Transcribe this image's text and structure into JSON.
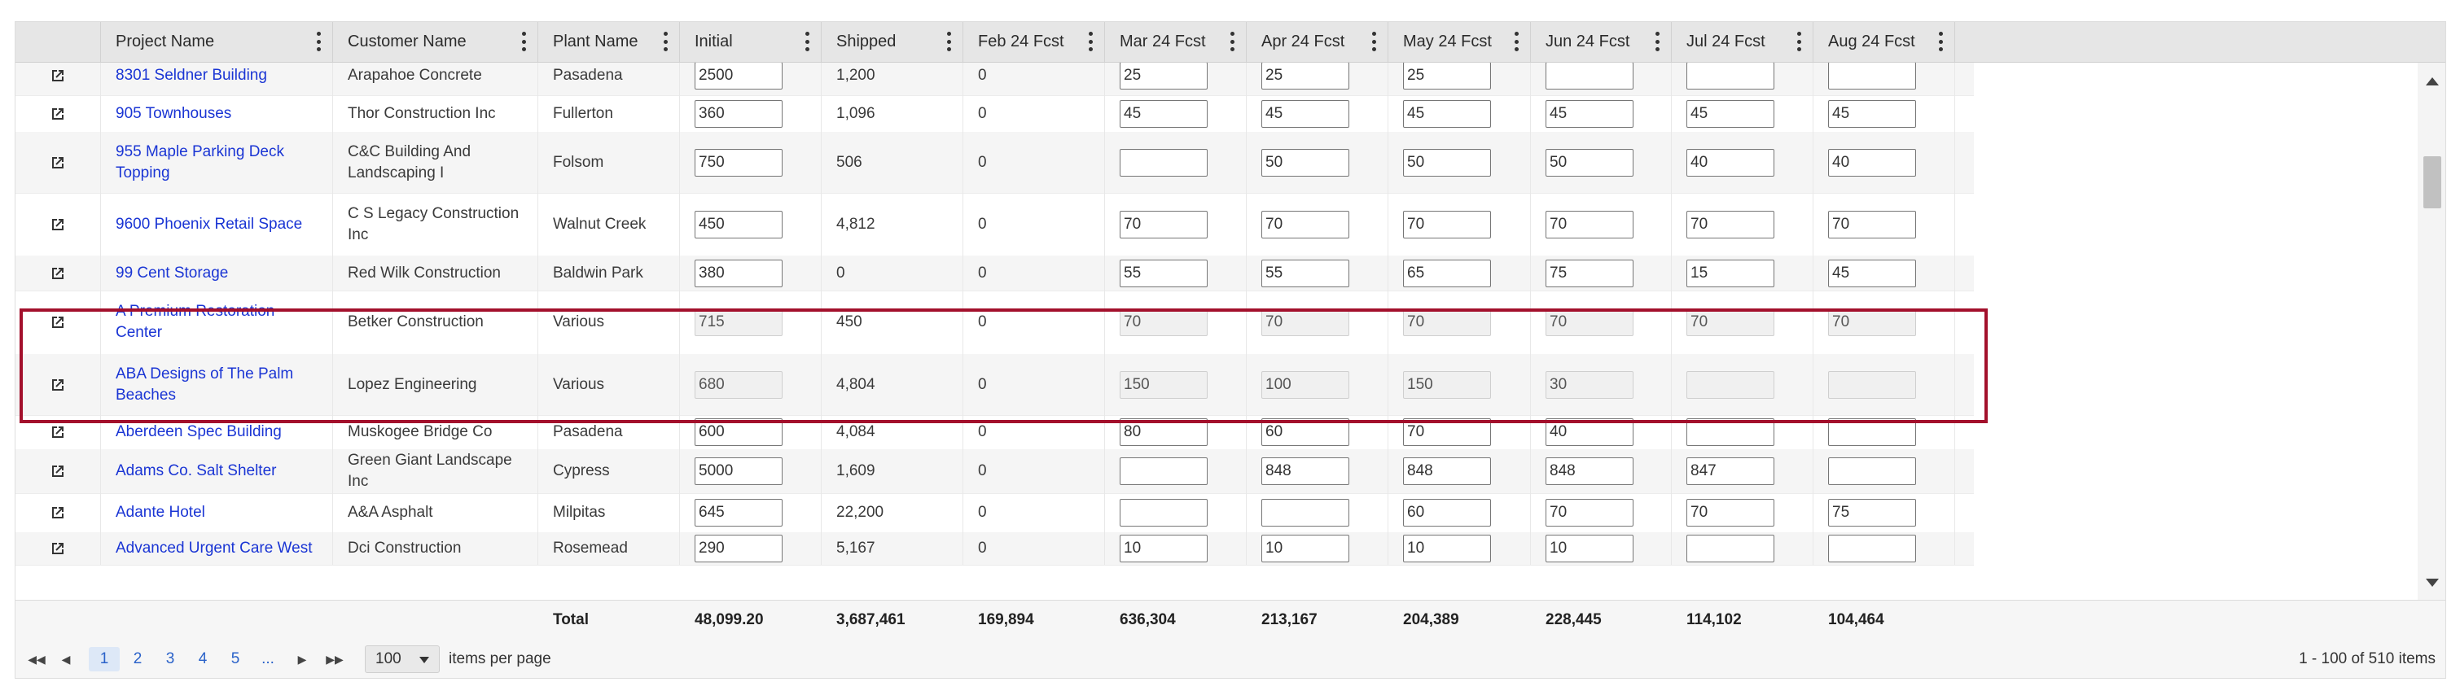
{
  "columns": [
    "",
    "Project Name",
    "Customer Name",
    "Plant Name",
    "Initial",
    "Shipped",
    "Feb 24  Fcst",
    "Mar 24  Fcst",
    "Apr 24  Fcst",
    "May 24  Fcst",
    "Jun 24  Fcst",
    "Jul 24  Fcst",
    "Aug 24  Fcst"
  ],
  "rows": [
    {
      "project": "8301 Seldner Building",
      "customer": "Arapahoe Concrete",
      "plant": "Pasadena",
      "initial": "2500",
      "shipped": "1,200",
      "feb": "0",
      "fcst": [
        "25",
        "25",
        "25",
        "",
        "",
        ""
      ]
    },
    {
      "project": "905 Townhouses",
      "customer": "Thor Construction Inc",
      "plant": "Fullerton",
      "initial": "360",
      "shipped": "1,096",
      "feb": "0",
      "fcst": [
        "45",
        "45",
        "45",
        "45",
        "45",
        "45"
      ]
    },
    {
      "project": "955 Maple Parking Deck Topping",
      "customer": "C&C Building And Landscaping I",
      "plant": "Folsom",
      "initial": "750",
      "shipped": "506",
      "feb": "0",
      "fcst": [
        "",
        "50",
        "50",
        "50",
        "40",
        "40"
      ]
    },
    {
      "project": "9600 Phoenix Retail Space",
      "customer": "C S Legacy Construction Inc",
      "plant": "Walnut Creek",
      "initial": "450",
      "shipped": "4,812",
      "feb": "0",
      "fcst": [
        "70",
        "70",
        "70",
        "70",
        "70",
        "70"
      ]
    },
    {
      "project": "99 Cent Storage",
      "customer": "Red Wilk Construction",
      "plant": "Baldwin Park",
      "initial": "380",
      "shipped": "0",
      "feb": "0",
      "fcst": [
        "55",
        "55",
        "65",
        "75",
        "15",
        "45"
      ]
    },
    {
      "project": "A Premium Restoration Center",
      "customer": "Betker Construction",
      "plant": "Various",
      "initial": "715",
      "shipped": "450",
      "feb": "0",
      "fcst": [
        "70",
        "70",
        "70",
        "70",
        "70",
        "70"
      ]
    },
    {
      "project": "ABA Designs of The Palm Beaches",
      "customer": "Lopez Engineering",
      "plant": "Various",
      "initial": "680",
      "shipped": "4,804",
      "feb": "0",
      "fcst": [
        "150",
        "100",
        "150",
        "30",
        "",
        ""
      ]
    },
    {
      "project": "Aberdeen Spec Building",
      "customer": "Muskogee Bridge Co",
      "plant": "Pasadena",
      "initial": "600",
      "shipped": "4,084",
      "feb": "0",
      "fcst": [
        "80",
        "60",
        "70",
        "40",
        "",
        ""
      ]
    },
    {
      "project": "Adams Co. Salt Shelter",
      "customer": "Green Giant Landscape Inc",
      "plant": "Cypress",
      "initial": "5000",
      "shipped": "1,609",
      "feb": "0",
      "fcst": [
        "",
        "848",
        "848",
        "848",
        "847",
        ""
      ]
    },
    {
      "project": "Adante Hotel",
      "customer": "A&A Asphalt",
      "plant": "Milpitas",
      "initial": "645",
      "shipped": "22,200",
      "feb": "0",
      "fcst": [
        "",
        "",
        "60",
        "70",
        "70",
        "75"
      ]
    },
    {
      "project": "Advanced Urgent Care West",
      "customer": "Dci Construction",
      "plant": "Rosemead",
      "initial": "290",
      "shipped": "5,167",
      "feb": "0",
      "fcst": [
        "10",
        "10",
        "10",
        "10",
        "",
        ""
      ]
    }
  ],
  "totals": {
    "label": "Total",
    "initial": "48,099.20",
    "shipped": "3,687,461",
    "feb": "169,894",
    "mar": "636,304",
    "apr": "213,167",
    "may": "204,389",
    "jun": "228,445",
    "jul": "114,102",
    "aug": "104,464"
  },
  "pager": {
    "pages": [
      "1",
      "2",
      "3",
      "4",
      "5",
      "..."
    ],
    "per_page": "100",
    "per_page_label": "items per page",
    "summary": "1 - 100 of 510 items"
  },
  "colors": {
    "link": "#1a35d4",
    "highlight": "#a3102c",
    "header_bg": "#e6e6e6"
  },
  "icons": {
    "row_action": "open-in-new-icon",
    "kebab": "column-menu-icon"
  }
}
